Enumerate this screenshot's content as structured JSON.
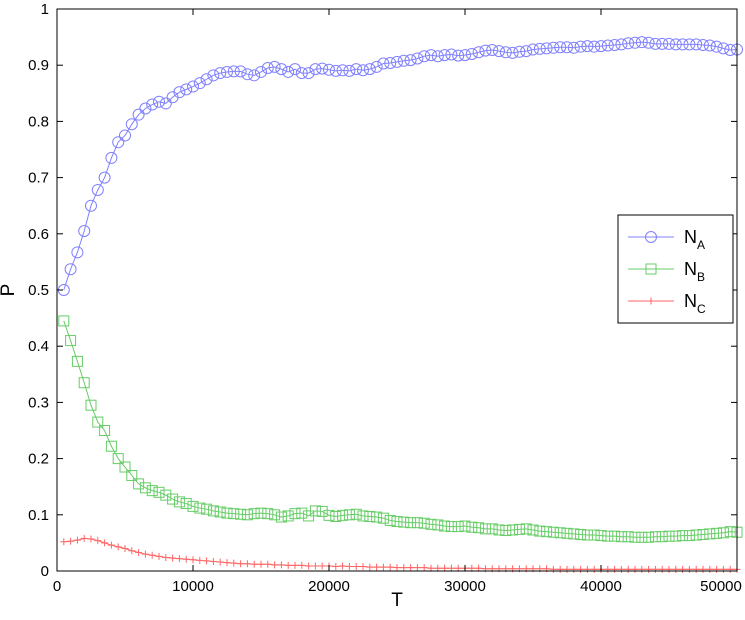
{
  "chart_data": {
    "type": "line",
    "xlabel": "T",
    "ylabel": "P",
    "xlim": [
      0,
      50000
    ],
    "ylim": [
      0,
      1
    ],
    "xticks": [
      0,
      10000,
      20000,
      30000,
      40000,
      50000
    ],
    "xtick_labels": [
      "0",
      "10000",
      "20000",
      "30000",
      "40000",
      "50000"
    ],
    "yticks": [
      0,
      0.1,
      0.2,
      0.3,
      0.4,
      0.5,
      0.6,
      0.7,
      0.8,
      0.9,
      1
    ],
    "ytick_labels": [
      "0",
      "0.1",
      "0.2",
      "0.3",
      "0.4",
      "0.5",
      "0.6",
      "0.7",
      "0.8",
      "0.9",
      "1"
    ],
    "grid": false,
    "legend_position": "right",
    "x": [
      500,
      1000,
      1500,
      2000,
      2500,
      3000,
      3500,
      4000,
      4500,
      5000,
      5500,
      6000,
      6500,
      7000,
      7500,
      8000,
      8500,
      9000,
      9500,
      10000,
      10500,
      11000,
      11500,
      12000,
      12500,
      13000,
      13500,
      14000,
      14500,
      15000,
      15500,
      16000,
      16500,
      17000,
      17500,
      18000,
      18500,
      19000,
      19500,
      20000,
      20500,
      21000,
      21500,
      22000,
      22500,
      23000,
      23500,
      24000,
      24500,
      25000,
      25500,
      26000,
      26500,
      27000,
      27500,
      28000,
      28500,
      29000,
      29500,
      30000,
      30500,
      31000,
      31500,
      32000,
      32500,
      33000,
      33500,
      34000,
      34500,
      35000,
      35500,
      36000,
      36500,
      37000,
      37500,
      38000,
      38500,
      39000,
      39500,
      40000,
      40500,
      41000,
      41500,
      42000,
      42500,
      43000,
      43500,
      44000,
      44500,
      45000,
      45500,
      46000,
      46500,
      47000,
      47500,
      48000,
      48500,
      49000,
      49500,
      50000
    ],
    "series": [
      {
        "name": "N_A",
        "label_main": "N",
        "label_sub": "A",
        "color": "#8080ff",
        "marker": "circle",
        "values": [
          0.5,
          0.537,
          0.567,
          0.605,
          0.65,
          0.678,
          0.7,
          0.735,
          0.763,
          0.775,
          0.795,
          0.812,
          0.823,
          0.83,
          0.835,
          0.832,
          0.843,
          0.852,
          0.857,
          0.862,
          0.868,
          0.875,
          0.882,
          0.886,
          0.888,
          0.889,
          0.889,
          0.884,
          0.882,
          0.888,
          0.895,
          0.897,
          0.893,
          0.888,
          0.893,
          0.886,
          0.886,
          0.893,
          0.894,
          0.892,
          0.89,
          0.891,
          0.89,
          0.893,
          0.891,
          0.893,
          0.897,
          0.903,
          0.904,
          0.906,
          0.908,
          0.909,
          0.912,
          0.916,
          0.918,
          0.916,
          0.918,
          0.919,
          0.917,
          0.918,
          0.92,
          0.923,
          0.926,
          0.927,
          0.925,
          0.923,
          0.922,
          0.924,
          0.925,
          0.928,
          0.929,
          0.93,
          0.931,
          0.932,
          0.932,
          0.931,
          0.933,
          0.934,
          0.933,
          0.934,
          0.935,
          0.936,
          0.937,
          0.939,
          0.94,
          0.941,
          0.94,
          0.938,
          0.938,
          0.938,
          0.937,
          0.937,
          0.937,
          0.937,
          0.936,
          0.935,
          0.933,
          0.93,
          0.927,
          0.928
        ]
      },
      {
        "name": "N_B",
        "label_main": "N",
        "label_sub": "B",
        "color": "#66cc66",
        "marker": "square",
        "values": [
          0.445,
          0.41,
          0.373,
          0.335,
          0.295,
          0.265,
          0.25,
          0.222,
          0.2,
          0.185,
          0.17,
          0.155,
          0.148,
          0.143,
          0.14,
          0.135,
          0.128,
          0.123,
          0.12,
          0.115,
          0.112,
          0.11,
          0.107,
          0.105,
          0.103,
          0.102,
          0.101,
          0.1,
          0.102,
          0.103,
          0.102,
          0.1,
          0.096,
          0.098,
          0.102,
          0.103,
          0.098,
          0.107,
          0.106,
          0.099,
          0.097,
          0.099,
          0.1,
          0.101,
          0.098,
          0.097,
          0.096,
          0.094,
          0.09,
          0.088,
          0.087,
          0.086,
          0.086,
          0.085,
          0.083,
          0.082,
          0.08,
          0.079,
          0.079,
          0.08,
          0.078,
          0.077,
          0.075,
          0.075,
          0.073,
          0.072,
          0.073,
          0.074,
          0.075,
          0.073,
          0.071,
          0.07,
          0.069,
          0.068,
          0.067,
          0.066,
          0.065,
          0.064,
          0.064,
          0.063,
          0.062,
          0.062,
          0.061,
          0.061,
          0.06,
          0.06,
          0.06,
          0.061,
          0.061,
          0.062,
          0.062,
          0.063,
          0.063,
          0.064,
          0.065,
          0.066,
          0.067,
          0.068,
          0.07,
          0.069
        ]
      },
      {
        "name": "N_C",
        "label_main": "N",
        "label_sub": "C",
        "color": "#ff6666",
        "marker": "plus",
        "values": [
          0.052,
          0.053,
          0.055,
          0.058,
          0.057,
          0.054,
          0.05,
          0.046,
          0.043,
          0.04,
          0.036,
          0.033,
          0.03,
          0.028,
          0.026,
          0.024,
          0.023,
          0.022,
          0.021,
          0.02,
          0.019,
          0.018,
          0.017,
          0.016,
          0.015,
          0.014,
          0.013,
          0.013,
          0.012,
          0.012,
          0.012,
          0.011,
          0.011,
          0.01,
          0.01,
          0.01,
          0.009,
          0.009,
          0.009,
          0.009,
          0.008,
          0.009,
          0.008,
          0.008,
          0.008,
          0.007,
          0.007,
          0.007,
          0.007,
          0.006,
          0.006,
          0.006,
          0.006,
          0.006,
          0.005,
          0.005,
          0.005,
          0.005,
          0.005,
          0.005,
          0.005,
          0.005,
          0.004,
          0.004,
          0.004,
          0.004,
          0.004,
          0.004,
          0.004,
          0.004,
          0.004,
          0.004,
          0.003,
          0.003,
          0.003,
          0.003,
          0.003,
          0.003,
          0.003,
          0.003,
          0.003,
          0.003,
          0.003,
          0.003,
          0.003,
          0.003,
          0.003,
          0.003,
          0.003,
          0.003,
          0.003,
          0.003,
          0.003,
          0.003,
          0.003,
          0.003,
          0.003,
          0.003,
          0.003,
          0.003
        ]
      }
    ]
  }
}
